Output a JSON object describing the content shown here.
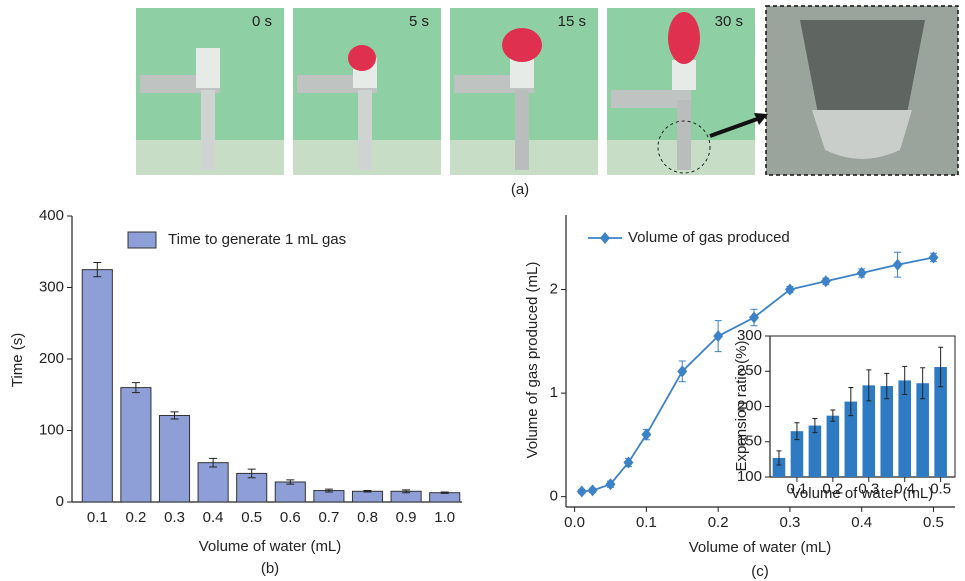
{
  "photos": {
    "time_labels": [
      "0 s",
      "5 s",
      "15 s",
      "30 s"
    ],
    "caption": "(a)"
  },
  "chart_data": [
    {
      "type": "bar",
      "caption": "(b)",
      "x_label": "Volume of water (mL)",
      "y_label": "Time (s)",
      "categories": [
        "0.1",
        "0.2",
        "0.3",
        "0.4",
        "0.5",
        "0.6",
        "0.7",
        "0.8",
        "0.9",
        "1.0"
      ],
      "series": [
        {
          "name": "Time to generate 1 mL gas",
          "color": "#8e9fd8",
          "values": [
            325,
            160,
            121,
            55,
            40,
            28,
            16,
            15,
            15,
            13
          ],
          "errors": [
            10,
            7,
            5,
            6,
            6,
            3,
            2,
            1,
            2,
            1
          ]
        }
      ],
      "ylim": [
        0,
        400
      ],
      "yticks": [
        0,
        100,
        200,
        300,
        400
      ],
      "legend": "upper-left"
    },
    {
      "type": "line",
      "caption": "(c)",
      "x_label": "Volume of water (mL)",
      "y_label": "Volume of gas produced (mL)",
      "x": [
        0.01,
        0.025,
        0.05,
        0.075,
        0.1,
        0.15,
        0.2,
        0.25,
        0.3,
        0.35,
        0.4,
        0.45,
        0.5
      ],
      "series": [
        {
          "name": "Volume of gas produced",
          "color": "#3c82c8",
          "values": [
            0.05,
            0.06,
            0.12,
            0.33,
            0.6,
            1.21,
            1.55,
            1.73,
            2.0,
            2.08,
            2.16,
            2.24,
            2.31
          ],
          "errors": [
            0.02,
            0.02,
            0.03,
            0.04,
            0.05,
            0.1,
            0.15,
            0.08,
            0.03,
            0.03,
            0.04,
            0.12,
            0.04
          ]
        }
      ],
      "xlim": [
        -0.012,
        0.53
      ],
      "xticks": [
        {
          "value": 0,
          "label": "0.0"
        },
        0.1,
        0.2,
        0.3,
        0.4,
        0.5
      ],
      "ylim": [
        -0.1,
        2.72
      ],
      "yticks": [
        0,
        1,
        2
      ],
      "legend": "upper-left"
    },
    {
      "type": "bar",
      "x_label": "Volume of water (mL)",
      "y_label": "Expansion ratio (%)",
      "x": [
        0.05,
        0.1,
        0.15,
        0.2,
        0.25,
        0.3,
        0.35,
        0.4,
        0.45,
        0.5
      ],
      "series": [
        {
          "color": "#2f7bc3",
          "values": [
            127,
            165,
            173,
            187,
            207,
            230,
            229,
            237,
            233,
            256
          ],
          "errors": [
            10,
            12,
            10,
            8,
            20,
            22,
            18,
            20,
            22,
            28
          ]
        }
      ],
      "xlim": [
        0.025,
        0.54
      ],
      "xticks": [
        0.1,
        0.2,
        0.3,
        0.4,
        0.5
      ],
      "ylim": [
        100,
        300
      ],
      "yticks": [
        100,
        150,
        200,
        250,
        300
      ]
    }
  ]
}
